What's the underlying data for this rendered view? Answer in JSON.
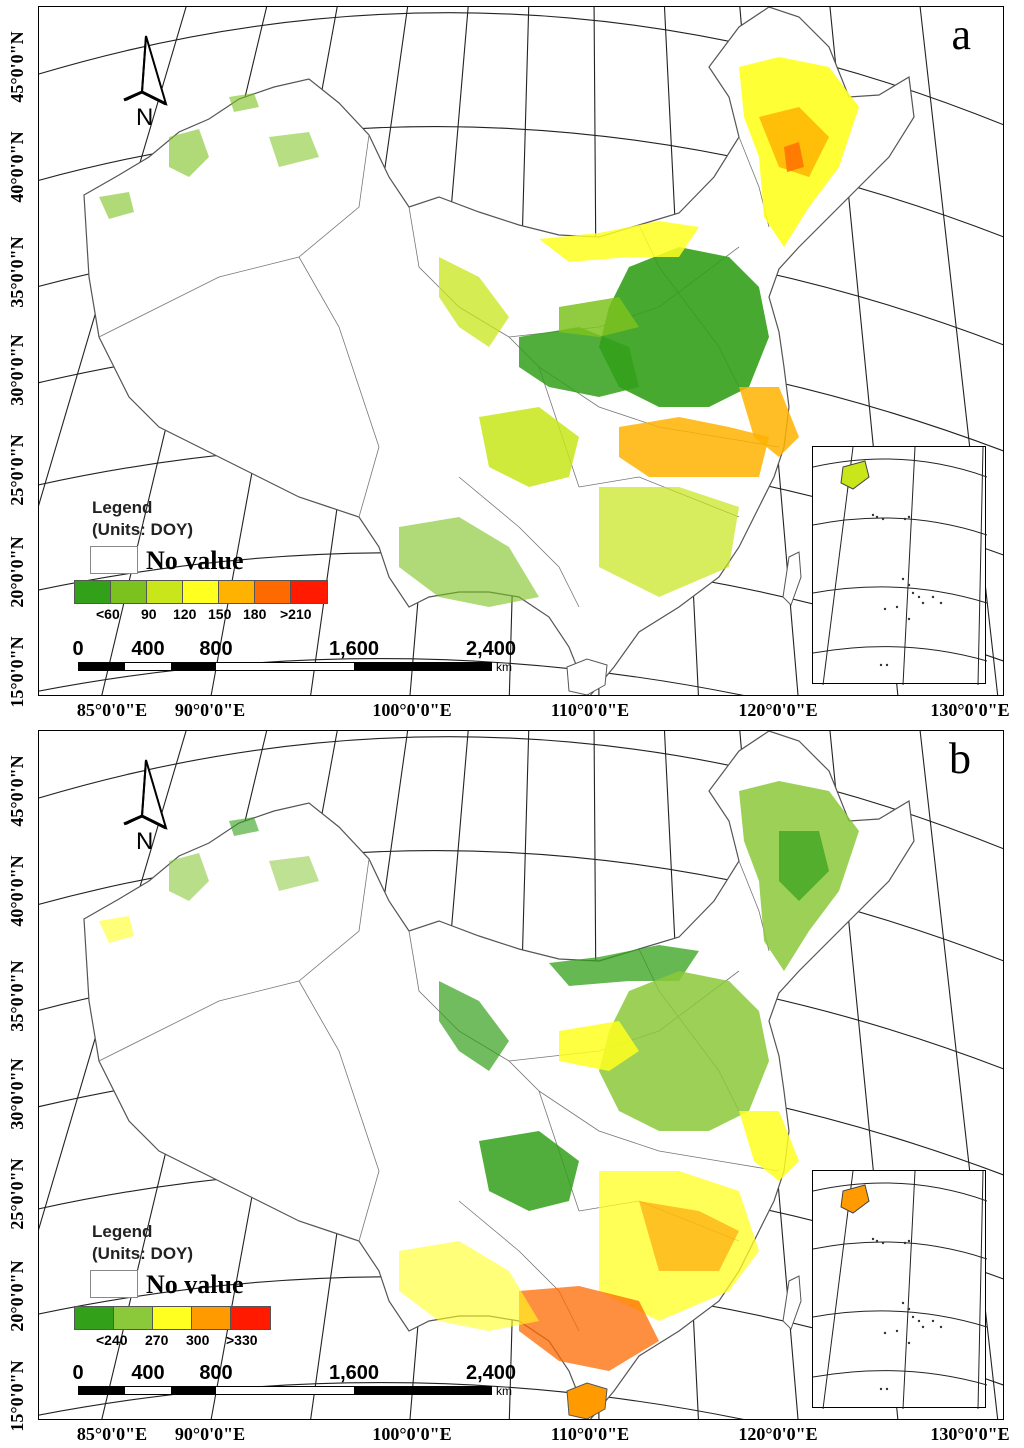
{
  "panels": [
    {
      "letter": "a",
      "legend": {
        "title_line1": "Legend",
        "title_line2": "(Units: DOY)",
        "no_value": "No value",
        "class_colors": [
          "#33a01a",
          "#7cc21e",
          "#c8e619",
          "#ffff20",
          "#ffb300",
          "#ff6a00",
          "#ff1a00"
        ],
        "tick_labels": [
          "<60",
          "90",
          "120",
          "150",
          "180",
          ">210"
        ]
      },
      "scale": {
        "labels": [
          "0",
          "400",
          "800",
          "1,600",
          "2,400"
        ],
        "unit": "km"
      },
      "north": "N"
    },
    {
      "letter": "b",
      "legend": {
        "title_line1": "Legend",
        "title_line2": "(Units: DOY)",
        "no_value": "No value",
        "class_colors": [
          "#33a01a",
          "#8bc83a",
          "#ffff20",
          "#ff9a00",
          "#ff1a00"
        ],
        "tick_labels": [
          "<240",
          "270",
          "300",
          ">330"
        ]
      },
      "scale": {
        "labels": [
          "0",
          "400",
          "800",
          "1,600",
          "2,400"
        ],
        "unit": "km"
      },
      "north": "N"
    }
  ],
  "lat_labels": [
    "45°0'0\"N",
    "40°0'0\"N",
    "35°0'0\"N",
    "30°0'0\"N",
    "25°0'0\"N",
    "20°0'0\"N",
    "15°0'0\"N"
  ],
  "lon_labels": [
    "85°0'0\"E",
    "90°0'0\"E",
    "100°0'0\"E",
    "110°0'0\"E",
    "120°0'0\"E",
    "130°0'0\"E"
  ]
}
